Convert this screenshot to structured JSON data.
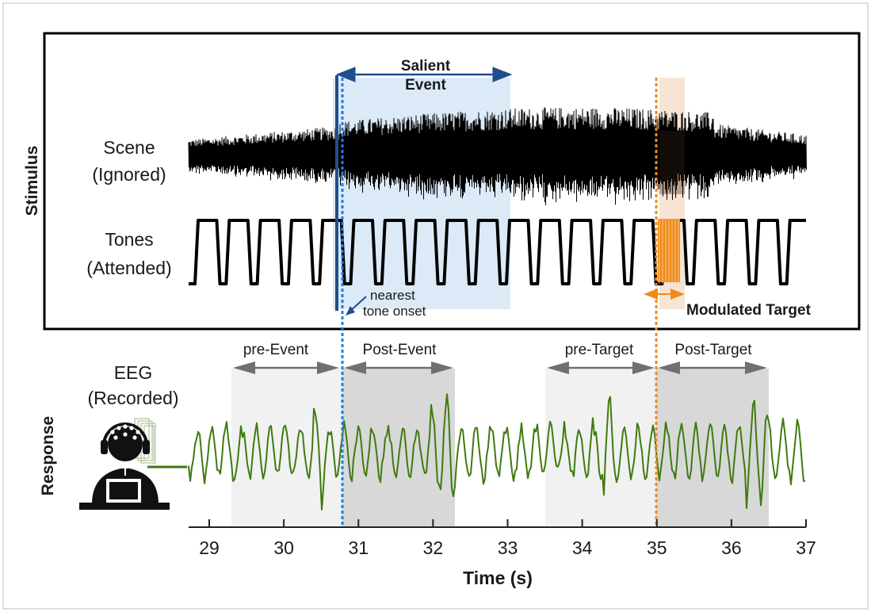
{
  "stimulus": {
    "section_label": "Stimulus",
    "scene_label": [
      "Scene",
      "(Ignored)"
    ],
    "tones_label": [
      "Tones",
      "(Attended)"
    ],
    "salient_event_label": [
      "Salient",
      "Event"
    ],
    "nearest_onset_label": [
      "nearest",
      "tone onset"
    ],
    "modulated_target_label": "Modulated Target"
  },
  "response": {
    "section_label": "Response",
    "eeg_label": [
      "EEG",
      "(Recorded)"
    ],
    "windows": [
      "pre-Event",
      "Post-Event",
      "pre-Target",
      "Post-Target"
    ]
  },
  "axis": {
    "xlabel": "Time (s)",
    "ticks": [
      "29",
      "30",
      "31",
      "32",
      "33",
      "34",
      "35",
      "36",
      "37"
    ]
  },
  "colors": {
    "salient": "#1f4e8c",
    "salient_fill": "#dceaf8",
    "onset": "#1e7fe0",
    "target": "#ef8a1a",
    "target_fill": "#f7e4d4",
    "eeg": "#3f7a10",
    "window_light": "#f1f1f1",
    "window_dark": "#d8d8d8",
    "arrow_gray": "#707070"
  }
}
